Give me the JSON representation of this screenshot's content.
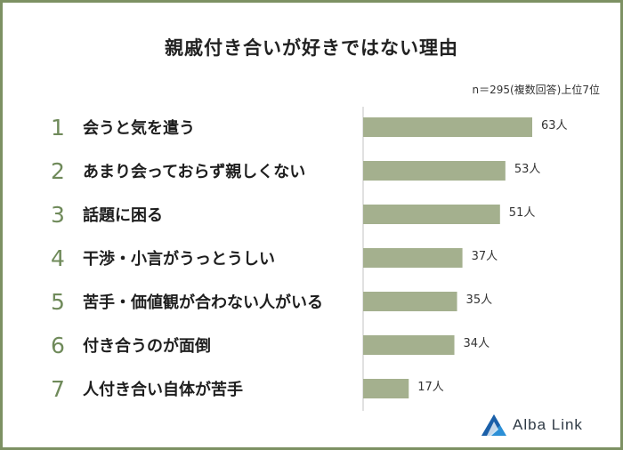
{
  "title": "親戚付き合いが好きではない理由",
  "note": "n＝295(複数回答)上位7位",
  "brand": {
    "name": "Alba Link"
  },
  "colors": {
    "bar": "#a4b08e",
    "border": "#7d9163",
    "rank": "#6f8a5a"
  },
  "chart_data": {
    "type": "bar",
    "orientation": "horizontal",
    "title": "親戚付き合いが好きではない理由",
    "unit": "人",
    "ranks": [
      "1",
      "2",
      "3",
      "4",
      "5",
      "6",
      "7"
    ],
    "categories": [
      "会うと気を遣う",
      "あまり会っておらず親しくない",
      "話題に困る",
      "干渉・小言がうっとうしい",
      "苦手・価値観が合わない人がいる",
      "付き合うのが面倒",
      "人付き合い自体が苦手"
    ],
    "values": [
      63,
      53,
      51,
      37,
      35,
      34,
      17
    ],
    "value_labels": [
      "63人",
      "53人",
      "51人",
      "37人",
      "35人",
      "34人",
      "17人"
    ],
    "xlim": [
      0,
      70
    ],
    "grid": false
  }
}
